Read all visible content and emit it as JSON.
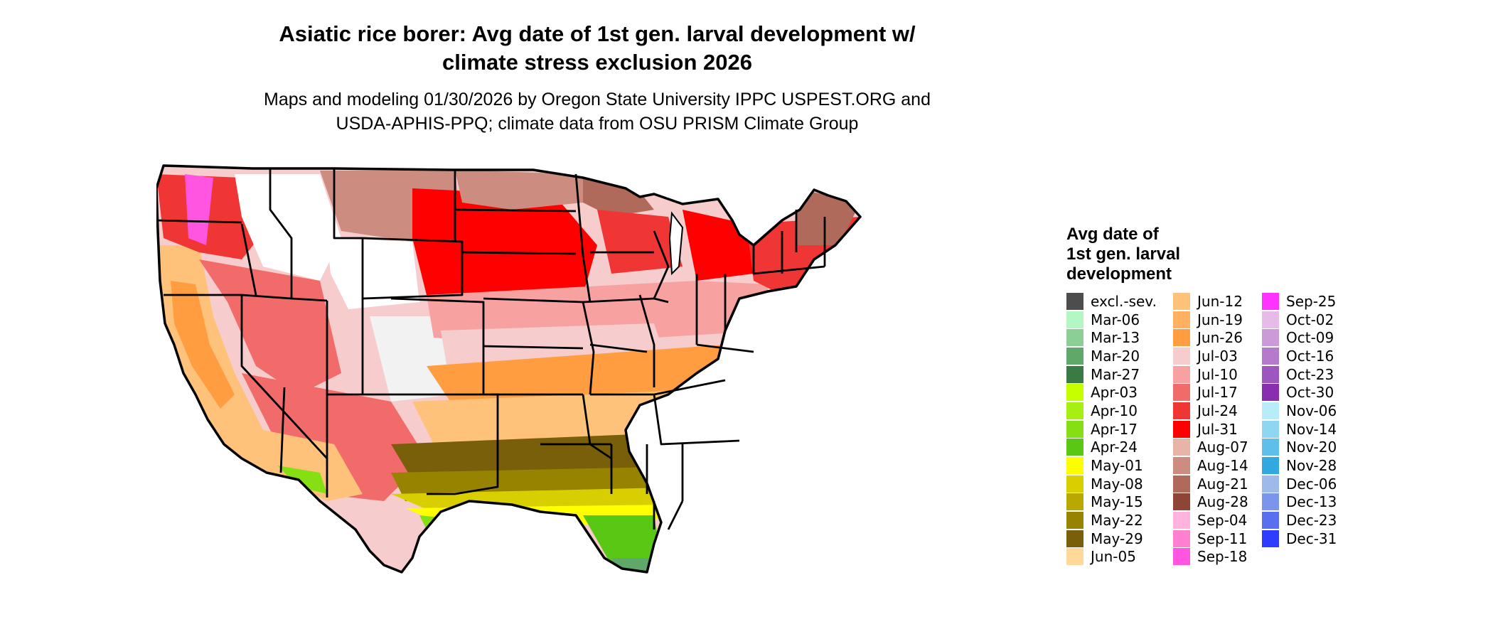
{
  "title": {
    "line1": "Asiatic rice borer: Avg date of 1st gen. larval development w/",
    "line2": "climate stress exclusion 2026"
  },
  "subtitle": {
    "line1": "Maps and modeling 01/30/2026 by Oregon State University IPPC USPEST.ORG and",
    "line2": "USDA-APHIS-PPQ; climate data from OSU PRISM Climate Group"
  },
  "legend": {
    "title_lines": [
      "Avg date of",
      "1st gen. larval",
      "development"
    ],
    "columns": [
      [
        {
          "label": "excl.-sev.",
          "color": "#4d4d4d"
        },
        {
          "label": "Mar-06",
          "color": "#b3f7c4"
        },
        {
          "label": "Mar-13",
          "color": "#8ccf96"
        },
        {
          "label": "Mar-20",
          "color": "#5fa86a"
        },
        {
          "label": "Mar-27",
          "color": "#3a7a44"
        },
        {
          "label": "Apr-03",
          "color": "#c6ff00"
        },
        {
          "label": "Apr-10",
          "color": "#a6ef10"
        },
        {
          "label": "Apr-17",
          "color": "#86df12"
        },
        {
          "label": "Apr-24",
          "color": "#58c814"
        },
        {
          "label": "May-01",
          "color": "#ffff00"
        },
        {
          "label": "May-08",
          "color": "#d9cf00"
        },
        {
          "label": "May-15",
          "color": "#b8a800"
        },
        {
          "label": "May-22",
          "color": "#978300"
        },
        {
          "label": "May-29",
          "color": "#7a5f0a"
        },
        {
          "label": "Jun-05",
          "color": "#ffd99a"
        }
      ],
      [
        {
          "label": "Jun-12",
          "color": "#ffc27a"
        },
        {
          "label": "Jun-19",
          "color": "#ffb060"
        },
        {
          "label": "Jun-26",
          "color": "#ff9d40"
        },
        {
          "label": "Jul-03",
          "color": "#f7cccc"
        },
        {
          "label": "Jul-10",
          "color": "#f7a1a1"
        },
        {
          "label": "Jul-17",
          "color": "#f26b6b"
        },
        {
          "label": "Jul-24",
          "color": "#f03535"
        },
        {
          "label": "Jul-31",
          "color": "#ff0000"
        },
        {
          "label": "Aug-07",
          "color": "#e8b4a8"
        },
        {
          "label": "Aug-14",
          "color": "#cc8d80"
        },
        {
          "label": "Aug-21",
          "color": "#b06a5c"
        },
        {
          "label": "Aug-28",
          "color": "#8f4535"
        },
        {
          "label": "Sep-04",
          "color": "#ffb3de"
        },
        {
          "label": "Sep-11",
          "color": "#ff80d0"
        },
        {
          "label": "Sep-18",
          "color": "#ff55e0"
        }
      ],
      [
        {
          "label": "Sep-25",
          "color": "#ff33ff"
        },
        {
          "label": "Oct-02",
          "color": "#e6bbe8"
        },
        {
          "label": "Oct-09",
          "color": "#cc99d9"
        },
        {
          "label": "Oct-16",
          "color": "#b57acc"
        },
        {
          "label": "Oct-23",
          "color": "#9d55bf"
        },
        {
          "label": "Oct-30",
          "color": "#8a2eb0"
        },
        {
          "label": "Nov-06",
          "color": "#b8ecfa"
        },
        {
          "label": "Nov-14",
          "color": "#8ed6f2"
        },
        {
          "label": "Nov-20",
          "color": "#5ec0ea"
        },
        {
          "label": "Nov-28",
          "color": "#32a8e0"
        },
        {
          "label": "Dec-06",
          "color": "#9fbaea"
        },
        {
          "label": "Dec-13",
          "color": "#7a96ec"
        },
        {
          "label": "Dec-23",
          "color": "#5870f0"
        },
        {
          "label": "Dec-31",
          "color": "#2e3cff"
        }
      ]
    ]
  }
}
